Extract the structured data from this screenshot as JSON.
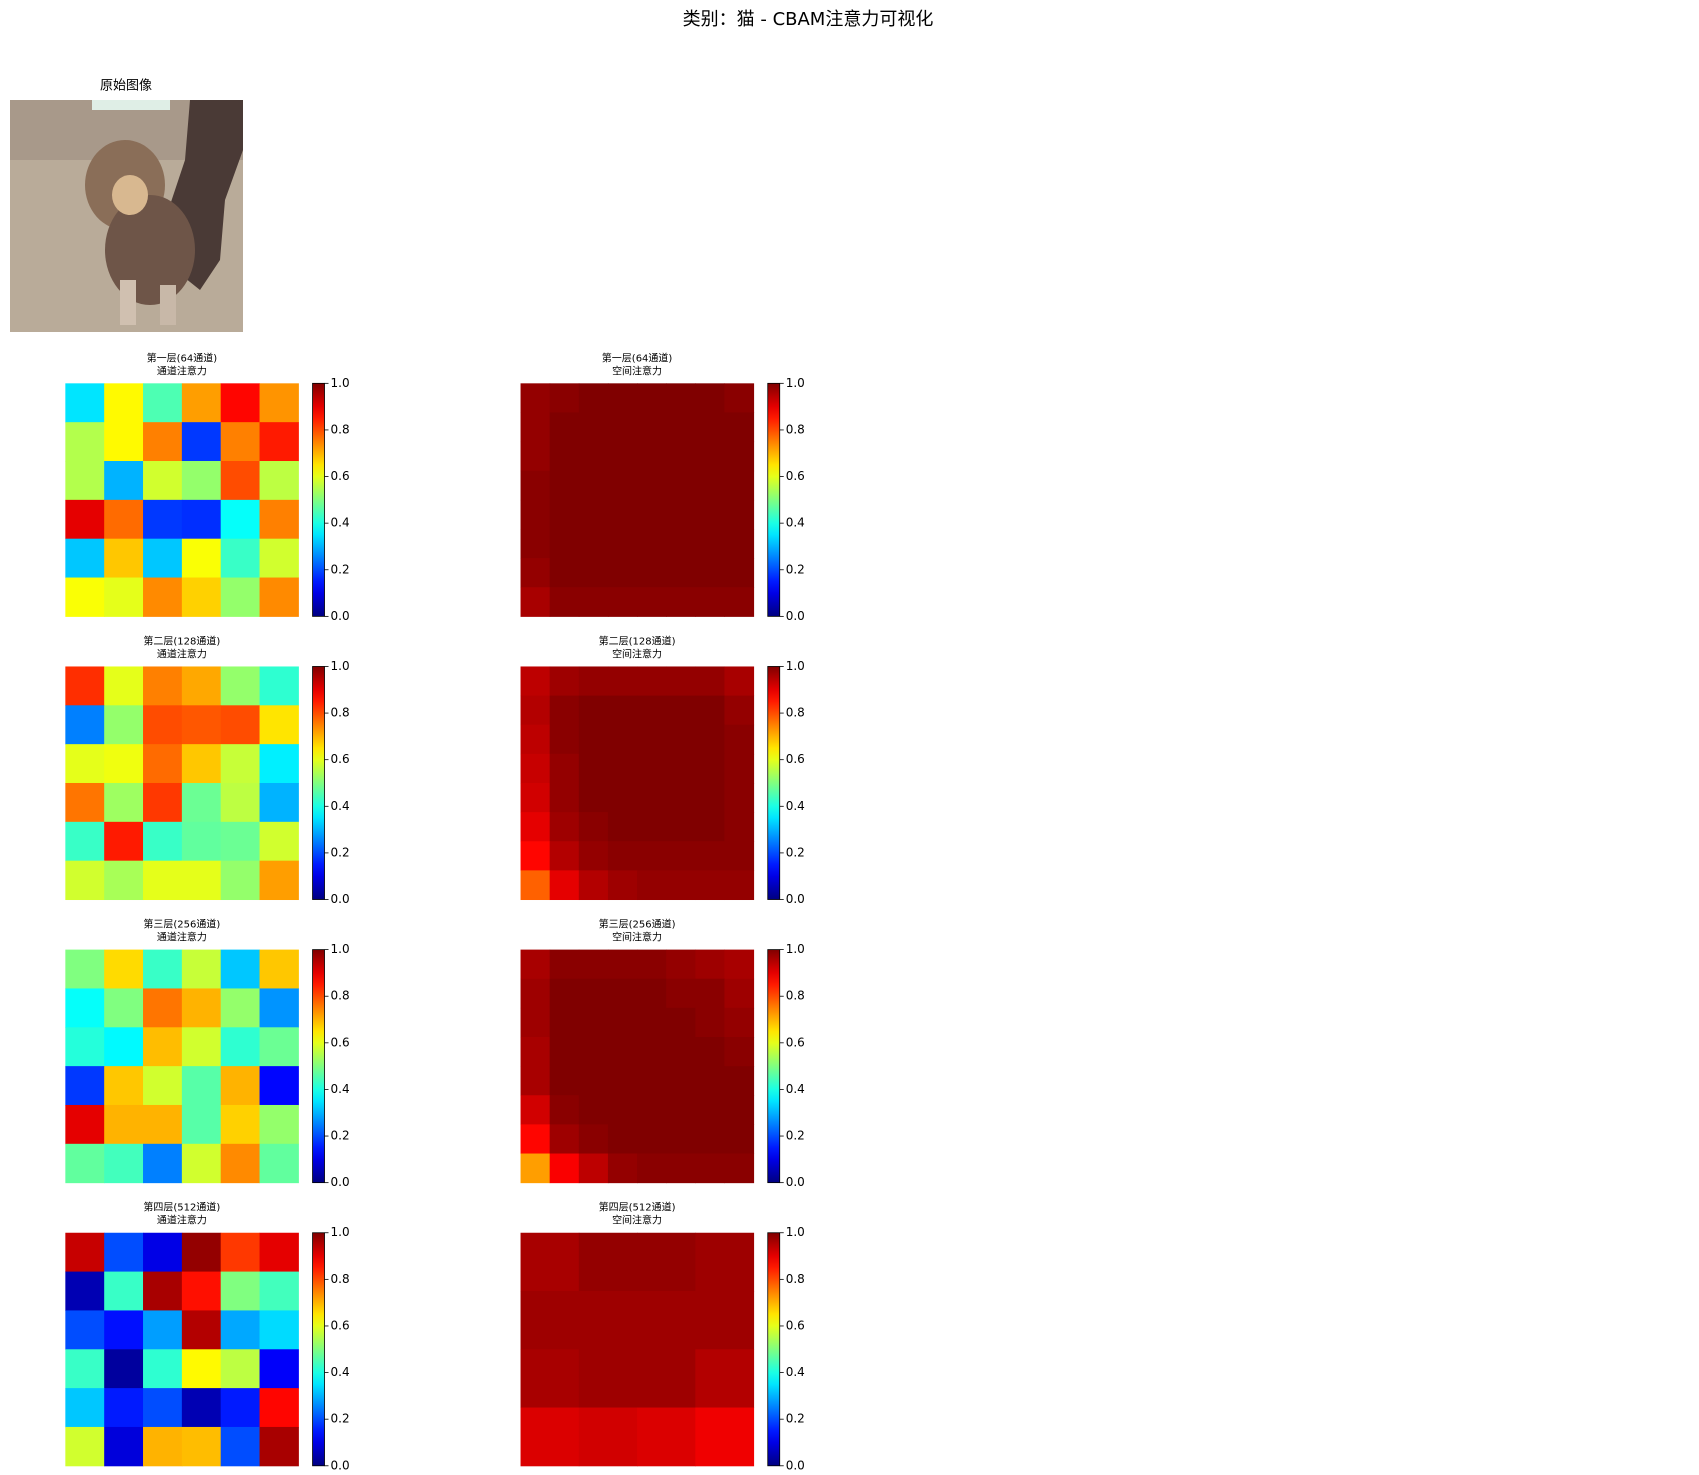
{
  "title": "类别：猫 - CBAM注意力可视化",
  "image": {
    "title": "原始图像"
  },
  "chart_data": [
    {
      "type": "heatmap",
      "title": "第一层(64通道)",
      "subtitle": "通道注意力",
      "colormap": "jet",
      "clim": [
        0,
        1
      ],
      "cticks": [
        {
          "value": 0,
          "label": "0.0"
        },
        0.2,
        0.4,
        0.6,
        0.8,
        {
          "value": 1,
          "label": "1.0"
        }
      ],
      "values": [
        [
          0.35,
          0.63,
          0.45,
          0.72,
          0.87,
          0.73
        ],
        [
          0.55,
          0.63,
          0.75,
          0.18,
          0.75,
          0.85
        ],
        [
          0.55,
          0.3,
          0.58,
          0.52,
          0.8,
          0.56
        ],
        [
          0.9,
          0.77,
          0.18,
          0.17,
          0.38,
          0.75
        ],
        [
          0.32,
          0.68,
          0.32,
          0.62,
          0.43,
          0.58
        ],
        [
          0.62,
          0.6,
          0.74,
          0.67,
          0.52,
          0.74
        ]
      ]
    },
    {
      "type": "heatmap",
      "title": "第一层(64通道)",
      "subtitle": "空间注意力",
      "colormap": "jet",
      "clim": [
        0,
        1
      ],
      "cticks": [
        {
          "value": 0,
          "label": "0.0"
        },
        0.2,
        0.4,
        0.6,
        0.8,
        {
          "value": 1,
          "label": "1.0"
        }
      ],
      "values": [
        [
          0.98,
          0.99,
          1,
          1,
          1,
          1,
          1,
          0.99
        ],
        [
          0.98,
          1,
          1,
          1,
          1,
          1,
          1,
          1
        ],
        [
          0.98,
          1,
          1,
          1,
          1,
          1,
          1,
          1
        ],
        [
          0.99,
          1,
          1,
          1,
          1,
          1,
          1,
          1
        ],
        [
          0.99,
          1,
          1,
          1,
          1,
          1,
          1,
          1
        ],
        [
          0.99,
          1,
          1,
          1,
          1,
          1,
          1,
          1
        ],
        [
          0.98,
          1,
          1,
          1,
          1,
          1,
          1,
          1
        ],
        [
          0.96,
          0.99,
          0.99,
          0.99,
          0.99,
          0.99,
          0.99,
          0.99
        ]
      ]
    },
    {
      "type": "heatmap",
      "title": "第二层(128通道)",
      "subtitle": "通道注意力",
      "colormap": "jet",
      "clim": [
        0,
        1
      ],
      "cticks": [
        {
          "value": 0,
          "label": "0.0"
        },
        0.2,
        0.4,
        0.6,
        0.8,
        {
          "value": 1,
          "label": "1.0"
        }
      ],
      "values": [
        [
          0.83,
          0.6,
          0.75,
          0.71,
          0.52,
          0.42
        ],
        [
          0.25,
          0.52,
          0.8,
          0.79,
          0.8,
          0.65
        ],
        [
          0.6,
          0.61,
          0.77,
          0.68,
          0.57,
          0.36
        ],
        [
          0.76,
          0.53,
          0.82,
          0.48,
          0.56,
          0.3
        ],
        [
          0.43,
          0.85,
          0.43,
          0.47,
          0.48,
          0.58
        ],
        [
          0.58,
          0.54,
          0.6,
          0.6,
          0.52,
          0.72
        ]
      ]
    },
    {
      "type": "heatmap",
      "title": "第二层(128通道)",
      "subtitle": "空间注意力",
      "colormap": "jet",
      "clim": [
        0,
        1
      ],
      "cticks": [
        {
          "value": 0,
          "label": "0.0"
        },
        0.2,
        0.4,
        0.6,
        0.8,
        {
          "value": 1,
          "label": "1.0"
        }
      ],
      "values": [
        [
          0.94,
          0.97,
          0.98,
          0.98,
          0.98,
          0.98,
          0.98,
          0.96
        ],
        [
          0.95,
          0.99,
          1,
          1,
          1,
          1,
          1,
          0.98
        ],
        [
          0.94,
          0.99,
          1,
          1,
          1,
          1,
          1,
          0.99
        ],
        [
          0.93,
          0.98,
          1,
          1,
          1,
          1,
          1,
          0.99
        ],
        [
          0.92,
          0.98,
          1,
          1,
          1,
          1,
          1,
          0.99
        ],
        [
          0.9,
          0.97,
          0.99,
          1,
          1,
          1,
          1,
          0.99
        ],
        [
          0.87,
          0.95,
          0.98,
          0.99,
          0.99,
          0.99,
          0.99,
          0.99
        ],
        [
          0.78,
          0.9,
          0.95,
          0.97,
          0.98,
          0.98,
          0.98,
          0.98
        ]
      ]
    },
    {
      "type": "heatmap",
      "title": "第三层(256通道)",
      "subtitle": "通道注意力",
      "colormap": "jet",
      "clim": [
        0,
        1
      ],
      "cticks": [
        {
          "value": 0,
          "label": "0.0"
        },
        0.2,
        0.4,
        0.6,
        0.8,
        {
          "value": 1,
          "label": "1.0"
        }
      ],
      "values": [
        [
          0.5,
          0.66,
          0.43,
          0.57,
          0.32,
          0.68
        ],
        [
          0.38,
          0.5,
          0.76,
          0.7,
          0.52,
          0.27
        ],
        [
          0.41,
          0.37,
          0.69,
          0.58,
          0.42,
          0.48
        ],
        [
          0.18,
          0.68,
          0.58,
          0.46,
          0.7,
          0.13
        ],
        [
          0.9,
          0.7,
          0.7,
          0.46,
          0.67,
          0.52
        ],
        [
          0.47,
          0.44,
          0.25,
          0.58,
          0.74,
          0.47
        ]
      ]
    },
    {
      "type": "heatmap",
      "title": "第三层(256通道)",
      "subtitle": "空间注意力",
      "colormap": "jet",
      "clim": [
        0,
        1
      ],
      "cticks": [
        {
          "value": 0,
          "label": "0.0"
        },
        0.2,
        0.4,
        0.6,
        0.8,
        {
          "value": 1,
          "label": "1.0"
        }
      ],
      "values": [
        [
          0.96,
          0.99,
          0.99,
          0.99,
          0.99,
          0.98,
          0.97,
          0.96
        ],
        [
          0.97,
          1,
          1,
          1,
          1,
          0.99,
          0.99,
          0.97
        ],
        [
          0.97,
          1,
          1,
          1,
          1,
          1,
          0.99,
          0.98
        ],
        [
          0.96,
          1,
          1,
          1,
          1,
          1,
          1,
          0.99
        ],
        [
          0.96,
          1,
          1,
          1,
          1,
          1,
          1,
          1
        ],
        [
          0.92,
          0.99,
          1,
          1,
          1,
          1,
          1,
          1
        ],
        [
          0.87,
          0.97,
          0.99,
          1,
          1,
          1,
          1,
          1
        ],
        [
          0.72,
          0.88,
          0.94,
          0.98,
          0.99,
          0.99,
          0.99,
          0.99
        ]
      ]
    },
    {
      "type": "heatmap",
      "title": "第四层(512通道)",
      "subtitle": "通道注意力",
      "colormap": "jet",
      "clim": [
        0,
        1
      ],
      "cticks": [
        {
          "value": 0,
          "label": "0.0"
        },
        0.2,
        0.4,
        0.6,
        0.8,
        {
          "value": 1,
          "label": "1.0"
        }
      ],
      "values": [
        [
          0.93,
          0.2,
          0.1,
          0.98,
          0.82,
          0.9
        ],
        [
          0.05,
          0.43,
          0.96,
          0.86,
          0.5,
          0.44
        ],
        [
          0.2,
          0.14,
          0.28,
          0.95,
          0.29,
          0.34
        ],
        [
          0.43,
          0.03,
          0.42,
          0.63,
          0.56,
          0.12
        ],
        [
          0.32,
          0.15,
          0.2,
          0.05,
          0.15,
          0.87
        ],
        [
          0.58,
          0.09,
          0.7,
          0.69,
          0.2,
          0.96
        ]
      ]
    },
    {
      "type": "heatmap",
      "title": "第四层(512通道)",
      "subtitle": "空间注意力",
      "colormap": "jet",
      "clim": [
        0,
        1
      ],
      "cticks": [
        {
          "value": 0,
          "label": "0.0"
        },
        0.2,
        0.4,
        0.6,
        0.8,
        {
          "value": 1,
          "label": "1.0"
        }
      ],
      "values": [
        [
          0.96,
          0.98,
          0.98,
          0.97
        ],
        [
          0.97,
          0.97,
          0.97,
          0.97
        ],
        [
          0.96,
          0.97,
          0.97,
          0.95
        ],
        [
          0.91,
          0.92,
          0.91,
          0.89
        ]
      ]
    }
  ]
}
